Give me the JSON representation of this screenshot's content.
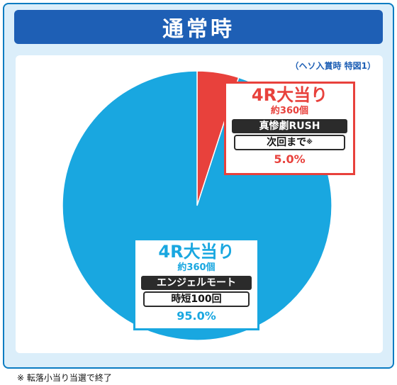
{
  "header": {
    "title": "通常時"
  },
  "condition_note": "（ヘソ入賞時 特図1）",
  "footnote": "※ 転落小当り当選で終了",
  "colors": {
    "accent": "#1e5fb5",
    "red": "#e8413c",
    "blue": "#19a7e0"
  },
  "chart_data": {
    "type": "pie",
    "title": "通常時",
    "slices": [
      {
        "name": "4R大当り",
        "count_label": "約360個",
        "mode": "真惨劇RUSH",
        "detail": "次回まで",
        "detail_mark": "※",
        "value": 5.0,
        "value_label": "5.0%",
        "color": "#e8413c"
      },
      {
        "name": "4R大当り",
        "count_label": "約360個",
        "mode": "エンジェルモート",
        "detail": "時短100回",
        "value": 95.0,
        "value_label": "95.0%",
        "color": "#19a7e0"
      }
    ]
  }
}
